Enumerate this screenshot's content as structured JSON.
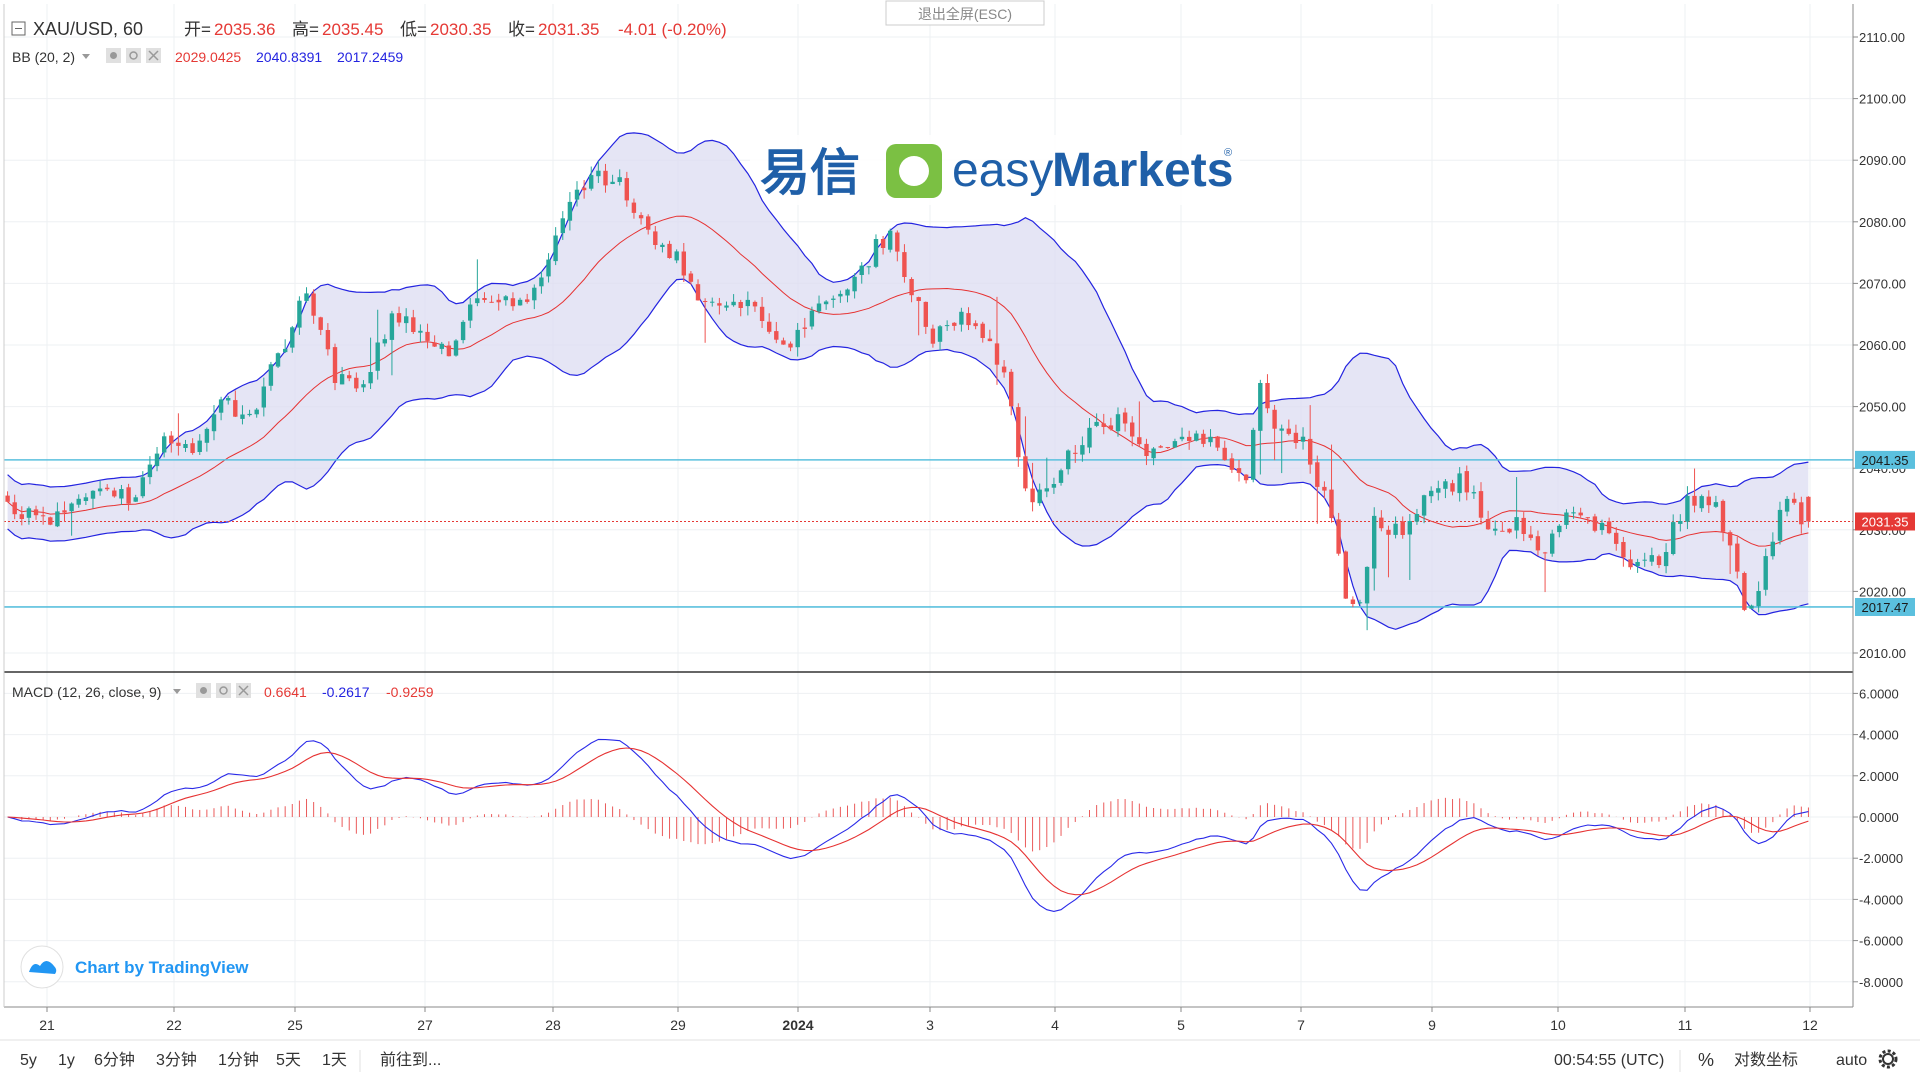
{
  "header": {
    "symbol": "XAU/USD, 60",
    "open_label": "开=",
    "open_value": "2035.36",
    "high_label": "高=",
    "high_value": "2035.45",
    "low_label": "低=",
    "low_value": "2030.35",
    "close_label": "收=",
    "close_value": "2031.35",
    "change": "-4.01 (-0.20%)",
    "exit_fullscreen": "退出全屏(ESC)"
  },
  "bb_legend": {
    "label": "BB (20, 2)",
    "basis": "2029.0425",
    "upper": "2040.8391",
    "lower": "2017.2459"
  },
  "macd_legend": {
    "label": "MACD (12, 26, close, 9)",
    "histogram": "0.6641",
    "macd": "-0.2617",
    "signal": "-0.9259"
  },
  "watermark": {
    "cn": "易信",
    "brand_easy": "easy",
    "brand_markets": "Markets",
    "reg": "®"
  },
  "credit": "Chart by TradingView",
  "toolbar": {
    "ranges": [
      "5y",
      "1y",
      "6分钟",
      "3分钟",
      "1分钟",
      "5天",
      "1天"
    ],
    "goto": "前往到...",
    "time": "00:54:55 (UTC)",
    "percent": "%",
    "log": "对数坐标",
    "auto": "auto"
  },
  "colors": {
    "up": "#26a69a",
    "down": "#ef5350",
    "bb_upper": "#2424e0",
    "bb_basis": "#e63232",
    "bb_fill": "#dcdcf2",
    "hline": "#5bc0de",
    "macd_line": "#2a2ae8",
    "signal_line": "#e63232",
    "price_label": "#e53935"
  },
  "chart_data": [
    {
      "type": "candlestick",
      "title": "XAU/USD, 60",
      "x_ticks": [
        "21",
        "22",
        "25",
        "27",
        "28",
        "29",
        "2024",
        "3",
        "4",
        "5",
        "7",
        "9",
        "10",
        "11",
        "12"
      ],
      "ylim": [
        2005,
        2112
      ],
      "y_ticks": [
        "2010.00",
        "2020.00",
        "2030.00",
        "2040.00",
        "2050.00",
        "2060.00",
        "2070.00",
        "2080.00",
        "2090.00",
        "2100.00",
        "2110.00"
      ],
      "price_labels": [
        "2041.35",
        "2031.35",
        "2017.47"
      ],
      "horizontal_lines": [
        2041.35,
        2017.47
      ],
      "last_price": 2031.35,
      "close_path": [
        [
          0,
          2034
        ],
        [
          6,
          2031
        ],
        [
          12,
          2037
        ],
        [
          18,
          2035
        ],
        [
          22,
          2045
        ],
        [
          26,
          2043
        ],
        [
          30,
          2051
        ],
        [
          34,
          2048
        ],
        [
          38,
          2058
        ],
        [
          42,
          2069
        ],
        [
          46,
          2055
        ],
        [
          50,
          2054
        ],
        [
          54,
          2065
        ],
        [
          58,
          2062
        ],
        [
          62,
          2058
        ],
        [
          66,
          2068
        ],
        [
          70,
          2067
        ],
        [
          74,
          2068
        ],
        [
          78,
          2081
        ],
        [
          82,
          2088
        ],
        [
          86,
          2086
        ],
        [
          90,
          2078
        ],
        [
          94,
          2074
        ],
        [
          98,
          2066
        ],
        [
          102,
          2068
        ],
        [
          106,
          2064
        ],
        [
          110,
          2060
        ],
        [
          114,
          2066
        ],
        [
          118,
          2068
        ],
        [
          122,
          2076
        ],
        [
          124,
          2078
        ],
        [
          126,
          2071
        ],
        [
          130,
          2061
        ],
        [
          134,
          2064
        ],
        [
          138,
          2060
        ],
        [
          140,
          2056
        ],
        [
          142,
          2042
        ],
        [
          144,
          2034
        ],
        [
          148,
          2040
        ],
        [
          152,
          2046
        ],
        [
          156,
          2048
        ],
        [
          160,
          2042
        ],
        [
          164,
          2044
        ],
        [
          168,
          2045
        ],
        [
          172,
          2040
        ],
        [
          174,
          2039
        ],
        [
          176,
          2054
        ],
        [
          178,
          2046
        ],
        [
          182,
          2044
        ],
        [
          186,
          2032
        ],
        [
          188,
          2020
        ],
        [
          190,
          2018
        ],
        [
          192,
          2032
        ],
        [
          196,
          2029
        ],
        [
          200,
          2036
        ],
        [
          204,
          2038
        ],
        [
          206,
          2036
        ],
        [
          208,
          2029
        ],
        [
          212,
          2031
        ],
        [
          216,
          2027
        ],
        [
          220,
          2034
        ],
        [
          224,
          2030
        ],
        [
          228,
          2023
        ],
        [
          232,
          2025
        ],
        [
          236,
          2035
        ],
        [
          240,
          2034
        ],
        [
          242,
          2028
        ],
        [
          244,
          2016
        ],
        [
          246,
          2021
        ],
        [
          248,
          2029
        ],
        [
          250,
          2036
        ],
        [
          252,
          2031
        ]
      ],
      "n_candles": 254
    },
    {
      "type": "macd",
      "title": "MACD (12, 26, close, 9)",
      "ylim": [
        -8.7,
        7.0
      ],
      "y_ticks": [
        "6.0000",
        "4.0000",
        "2.0000",
        "0.0000",
        "-2.0000",
        "-4.0000",
        "-6.0000",
        "-8.0000"
      ]
    }
  ]
}
